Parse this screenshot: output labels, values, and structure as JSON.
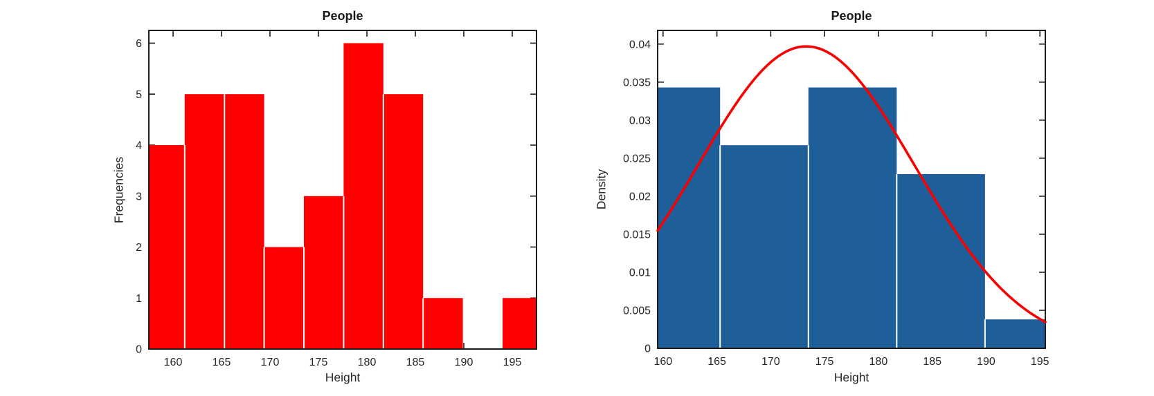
{
  "figure": {
    "background_color": "#ffffff",
    "axis_color": "#1c1c1c",
    "text_color": "#262626"
  },
  "chart_data": [
    {
      "type": "bar",
      "chart_kind": "histogram",
      "title": "People",
      "xlabel": "Height",
      "ylabel": "Frequencies",
      "bin_edges": [
        157.1,
        161.2,
        165.3,
        169.4,
        173.5,
        177.6,
        181.7,
        185.8,
        189.9,
        194.0,
        198.1
      ],
      "values": [
        4,
        5,
        5,
        2,
        3,
        6,
        5,
        1,
        0,
        1
      ],
      "xlim": [
        157.5,
        197.5
      ],
      "ylim": [
        0,
        6.25
      ],
      "xticks": [
        160,
        165,
        170,
        175,
        180,
        185,
        190,
        195
      ],
      "xtick_labels": [
        "160",
        "165",
        "170",
        "175",
        "180",
        "185",
        "190",
        "195"
      ],
      "yticks": [
        0,
        1,
        2,
        3,
        4,
        5,
        6
      ],
      "ytick_labels": [
        "0",
        "1",
        "2",
        "3",
        "4",
        "5",
        "6"
      ],
      "bar_color": "#fe0000",
      "bar_separator_color": "#ffffff",
      "grid": false,
      "legend": null
    },
    {
      "type": "bar",
      "chart_kind": "histogram-with-normal-fit",
      "title": "People",
      "xlabel": "Height",
      "ylabel": "Density",
      "bin_edges": [
        157.1,
        165.3,
        173.5,
        181.7,
        189.9,
        198.1
      ],
      "values": [
        0.0343,
        0.0267,
        0.0343,
        0.0229,
        0.0038
      ],
      "xlim": [
        159.5,
        195.5
      ],
      "ylim": [
        0,
        0.0418
      ],
      "xticks": [
        160,
        165,
        170,
        175,
        180,
        185,
        190,
        195
      ],
      "xtick_labels": [
        "160",
        "165",
        "170",
        "175",
        "180",
        "185",
        "190",
        "195"
      ],
      "yticks": [
        0,
        0.005,
        0.01,
        0.015,
        0.02,
        0.025,
        0.03,
        0.035,
        0.04
      ],
      "ytick_labels": [
        "0",
        "0.005",
        "0.01",
        "0.015",
        "0.02",
        "0.025",
        "0.03",
        "0.035",
        "0.04"
      ],
      "bar_color": "#1f5f99",
      "bar_separator_color": "#ffffff",
      "curve": {
        "shape": "normal-pdf",
        "mu": 173.3,
        "sigma": 10.05,
        "peak": 0.0397,
        "color": "#fb0000",
        "line_width": 3.6
      },
      "grid": false,
      "legend": null
    }
  ]
}
